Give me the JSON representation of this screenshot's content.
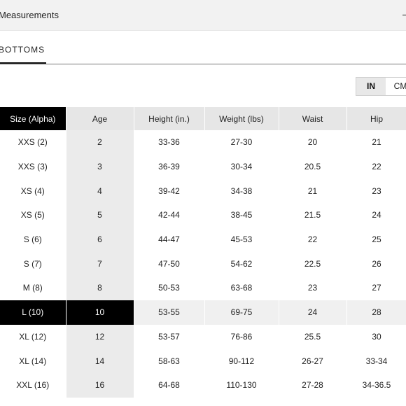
{
  "accordion": {
    "title": "Measurements"
  },
  "tabs": [
    {
      "label": "BOTTOMS",
      "active": true
    }
  ],
  "units": {
    "options": [
      "IN",
      "CM"
    ],
    "selected": "IN"
  },
  "table": {
    "headers": [
      "Size (Alpha)",
      "Age",
      "Height (in.)",
      "Weight (lbs)",
      "Waist",
      "Hip"
    ],
    "highlight_row": 7,
    "rows": [
      [
        "XXS (2)",
        "2",
        "33-36",
        "27-30",
        "20",
        "21"
      ],
      [
        "XXS (3)",
        "3",
        "36-39",
        "30-34",
        "20.5",
        "22"
      ],
      [
        "XS (4)",
        "4",
        "39-42",
        "34-38",
        "21",
        "23"
      ],
      [
        "XS (5)",
        "5",
        "42-44",
        "38-45",
        "21.5",
        "24"
      ],
      [
        "S (6)",
        "6",
        "44-47",
        "45-53",
        "22",
        "25"
      ],
      [
        "S (7)",
        "7",
        "47-50",
        "54-62",
        "22.5",
        "26"
      ],
      [
        "M (8)",
        "8",
        "50-53",
        "63-68",
        "23",
        "27"
      ],
      [
        "L (10)",
        "10",
        "53-55",
        "69-75",
        "24",
        "28"
      ],
      [
        "XL (12)",
        "12",
        "53-57",
        "76-86",
        "25.5",
        "30"
      ],
      [
        "XL (14)",
        "14",
        "58-63",
        "90-112",
        "26-27",
        "33-34"
      ],
      [
        "XXL (16)",
        "16",
        "64-68",
        "110-130",
        "27-28",
        "34-36.5"
      ]
    ]
  }
}
